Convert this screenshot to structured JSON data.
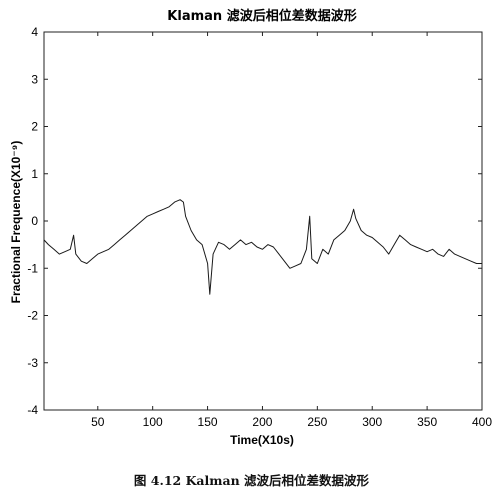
{
  "chart_data": {
    "type": "line",
    "title": "Klaman 滤波后相位差数据波形",
    "xlabel": "Time(X10s)",
    "ylabel": "Fractional Frequence(X10^9)",
    "ylabel_display": "Fractional Frequence(X10⁻⁹)",
    "xlim": [
      1,
      400
    ],
    "ylim": [
      -4,
      4
    ],
    "xticks": [
      50,
      100,
      150,
      200,
      250,
      300,
      350,
      400
    ],
    "yticks": [
      -4,
      -3,
      -2,
      -1,
      0,
      1,
      2,
      3,
      4
    ],
    "grid": false,
    "legend": "none",
    "line_color": "#1a1a1a",
    "series": [
      {
        "x": [
          1,
          5,
          10,
          15,
          20,
          25,
          28,
          30,
          35,
          40,
          45,
          50,
          55,
          60,
          65,
          70,
          75,
          80,
          85,
          90,
          95,
          100,
          105,
          110,
          115,
          120,
          125,
          128,
          130,
          135,
          140,
          145,
          150,
          152,
          155,
          160,
          165,
          170,
          175,
          180,
          185,
          190,
          195,
          200,
          205,
          210,
          215,
          220,
          225,
          230,
          235,
          240,
          243,
          245,
          250,
          255,
          260,
          265,
          270,
          275,
          280,
          283,
          285,
          290,
          295,
          300,
          305,
          310,
          315,
          320,
          325,
          330,
          335,
          340,
          345,
          350,
          355,
          360,
          365,
          370,
          375,
          380,
          385,
          390,
          395,
          400
        ],
        "values": [
          -0.4,
          -0.5,
          -0.6,
          -0.7,
          -0.65,
          -0.6,
          -0.3,
          -0.7,
          -0.85,
          -0.9,
          -0.8,
          -0.7,
          -0.65,
          -0.6,
          -0.5,
          -0.4,
          -0.3,
          -0.2,
          -0.1,
          0.0,
          0.1,
          0.15,
          0.2,
          0.25,
          0.3,
          0.4,
          0.45,
          0.4,
          0.1,
          -0.2,
          -0.4,
          -0.5,
          -0.9,
          -1.55,
          -0.7,
          -0.45,
          -0.5,
          -0.6,
          -0.5,
          -0.4,
          -0.5,
          -0.45,
          -0.55,
          -0.6,
          -0.5,
          -0.55,
          -0.7,
          -0.85,
          -1.0,
          -0.95,
          -0.9,
          -0.6,
          0.1,
          -0.8,
          -0.9,
          -0.6,
          -0.7,
          -0.4,
          -0.3,
          -0.2,
          0.0,
          0.25,
          0.05,
          -0.2,
          -0.3,
          -0.35,
          -0.45,
          -0.55,
          -0.7,
          -0.5,
          -0.3,
          -0.4,
          -0.5,
          -0.55,
          -0.6,
          -0.65,
          -0.6,
          -0.7,
          -0.75,
          -0.6,
          -0.7,
          -0.75,
          -0.8,
          -0.85,
          -0.9,
          -0.9
        ]
      }
    ]
  },
  "caption": "图 4.12 Kalman 滤波后相位差数据波形"
}
